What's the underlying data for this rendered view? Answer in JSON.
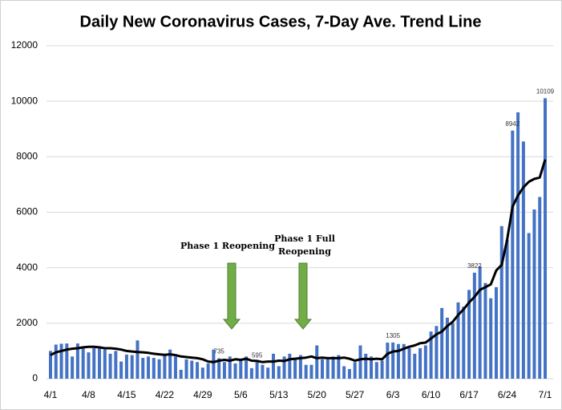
{
  "chart_data": {
    "type": "bar-line",
    "title": "Daily New Coronavirus Cases, 7-Day Ave. Trend Line",
    "categories": [
      "4/1",
      null,
      null,
      null,
      null,
      null,
      null,
      "4/8",
      null,
      null,
      null,
      null,
      null,
      null,
      "4/15",
      null,
      null,
      null,
      null,
      null,
      null,
      "4/22",
      null,
      null,
      null,
      null,
      null,
      null,
      "4/29",
      null,
      null,
      null,
      null,
      null,
      null,
      "5/6",
      null,
      null,
      null,
      null,
      null,
      null,
      "5/13",
      null,
      null,
      null,
      null,
      null,
      null,
      "5/20",
      null,
      null,
      null,
      null,
      null,
      null,
      "5/27",
      null,
      null,
      null,
      null,
      null,
      null,
      "6/3",
      null,
      null,
      null,
      null,
      null,
      null,
      "6/10",
      null,
      null,
      null,
      null,
      null,
      null,
      "6/17",
      null,
      null,
      null,
      null,
      null,
      null,
      "6/24",
      null,
      null,
      null,
      null,
      null,
      null,
      "7/1"
    ],
    "series": [
      {
        "kind": "bar",
        "color": "#4472c4",
        "values": [
          1000,
          1230,
          1260,
          1270,
          800,
          1270,
          1150,
          950,
          1100,
          1100,
          1050,
          900,
          1000,
          620,
          870,
          850,
          1380,
          750,
          800,
          750,
          700,
          850,
          1050,
          800,
          320,
          700,
          650,
          600,
          400,
          550,
          1050,
          735,
          600,
          800,
          550,
          700,
          800,
          380,
          595,
          500,
          400,
          900,
          450,
          800,
          900,
          700,
          850,
          500,
          500,
          1200,
          700,
          700,
          800,
          850,
          450,
          350,
          600,
          1200,
          900,
          800,
          600,
          650,
          1300,
          1305,
          1250,
          1250,
          1100,
          900,
          1100,
          1200,
          1700,
          1900,
          2550,
          2200,
          2000,
          2750,
          2600,
          3200,
          3822,
          4050,
          3450,
          2900,
          3300,
          5500,
          5000,
          8942,
          9600,
          8550,
          5250,
          6100,
          6550,
          10109
        ],
        "labels_at": [
          31,
          38,
          63,
          78,
          85,
          91
        ]
      },
      {
        "kind": "line",
        "color": "#000000",
        "values": [
          850,
          950,
          1000,
          1050,
          1080,
          1100,
          1130,
          1150,
          1150,
          1130,
          1100,
          1100,
          1080,
          1050,
          1000,
          980,
          960,
          950,
          930,
          900,
          880,
          860,
          880,
          850,
          800,
          780,
          760,
          740,
          700,
          620,
          600,
          650,
          680,
          650,
          700,
          680,
          720,
          650,
          640,
          600,
          620,
          620,
          650,
          640,
          700,
          720,
          740,
          760,
          800,
          740,
          760,
          740,
          740,
          740,
          760,
          720,
          650,
          700,
          720,
          700,
          720,
          700,
          900,
          980,
          1000,
          1080,
          1150,
          1200,
          1280,
          1300,
          1450,
          1600,
          1700,
          1900,
          2050,
          2300,
          2500,
          2750,
          2950,
          3200,
          3300,
          3400,
          3900,
          4100,
          5000,
          6200,
          6600,
          6900,
          7100,
          7200,
          7250,
          7900
        ]
      }
    ],
    "annotations": [
      [
        "Phase 1 Reopening"
      ],
      [
        "Phase 1 Full",
        "Reopening"
      ]
    ],
    "ylim": [
      0,
      12000
    ],
    "yticks": [
      0,
      2000,
      4000,
      6000,
      8000,
      10000,
      12000
    ],
    "grid": true
  }
}
